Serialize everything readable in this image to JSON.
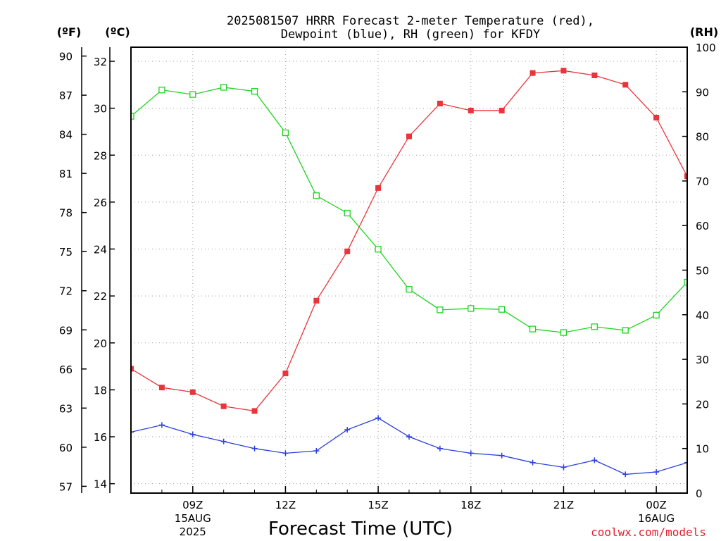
{
  "chart_data": {
    "type": "line",
    "title_lines": [
      "2025081507 HRRR Forecast 2-meter Temperature (red),",
      "Dewpoint (blue), RH (green) for KFDY"
    ],
    "xlabel": "Forecast Time (UTC)",
    "credit": "coolwx.com/models",
    "units": {
      "fahrenheit": "(ºF)",
      "celsius": "(ºC)",
      "rh": "(RH)"
    },
    "x_hours_utc": [
      7,
      8,
      9,
      10,
      11,
      12,
      13,
      14,
      15,
      16,
      17,
      18,
      19,
      20,
      21,
      22,
      23,
      24,
      25
    ],
    "x_range_hours": [
      7,
      25
    ],
    "x_ticks": [
      {
        "hour": 9,
        "label": "09Z",
        "sub1": "15AUG",
        "sub2": "2025"
      },
      {
        "hour": 12,
        "label": "12Z",
        "sub1": "",
        "sub2": ""
      },
      {
        "hour": 15,
        "label": "15Z",
        "sub1": "",
        "sub2": ""
      },
      {
        "hour": 18,
        "label": "18Z",
        "sub1": "",
        "sub2": ""
      },
      {
        "hour": 21,
        "label": "21Z",
        "sub1": "",
        "sub2": ""
      },
      {
        "hour": 24,
        "label": "00Z",
        "sub1": "16AUG",
        "sub2": ""
      }
    ],
    "celsius_range": [
      13.6,
      32.6
    ],
    "celsius_ticks": [
      "14",
      "16",
      "18",
      "20",
      "22",
      "24",
      "26",
      "28",
      "30",
      "32"
    ],
    "fahrenheit_ticks": [
      "57",
      "60",
      "63",
      "66",
      "69",
      "72",
      "75",
      "78",
      "81",
      "84",
      "87",
      "90"
    ],
    "rh_range": [
      0,
      100
    ],
    "rh_ticks": [
      "0",
      "10",
      "20",
      "30",
      "40",
      "50",
      "60",
      "70",
      "80",
      "90",
      "100"
    ],
    "grid": true,
    "series": [
      {
        "key": "temperature",
        "axis": "celsius",
        "color": "#e8343a",
        "marker": "filled-square",
        "values": [
          18.9,
          18.1,
          17.9,
          17.3,
          17.1,
          18.7,
          21.8,
          23.9,
          26.6,
          28.8,
          30.2,
          29.9,
          29.9,
          31.5,
          31.6,
          31.4,
          31.0,
          29.6,
          27.1
        ]
      },
      {
        "key": "dewpoint",
        "axis": "celsius",
        "color": "#2b3fe0",
        "marker": "plus",
        "values": [
          16.2,
          16.5,
          16.1,
          15.8,
          15.5,
          15.3,
          15.4,
          16.3,
          16.8,
          16.0,
          15.5,
          15.3,
          15.2,
          14.9,
          14.7,
          15.0,
          14.4,
          14.5,
          14.9
        ]
      },
      {
        "key": "relative_humidity",
        "axis": "rh",
        "color": "#1ed41e",
        "marker": "open-square",
        "values": [
          84.5,
          90.4,
          89.4,
          91.0,
          90.1,
          80.8,
          66.7,
          62.8,
          54.7,
          45.7,
          41.1,
          41.4,
          41.2,
          36.8,
          36.0,
          37.3,
          36.5,
          39.9,
          47.3
        ]
      }
    ]
  }
}
